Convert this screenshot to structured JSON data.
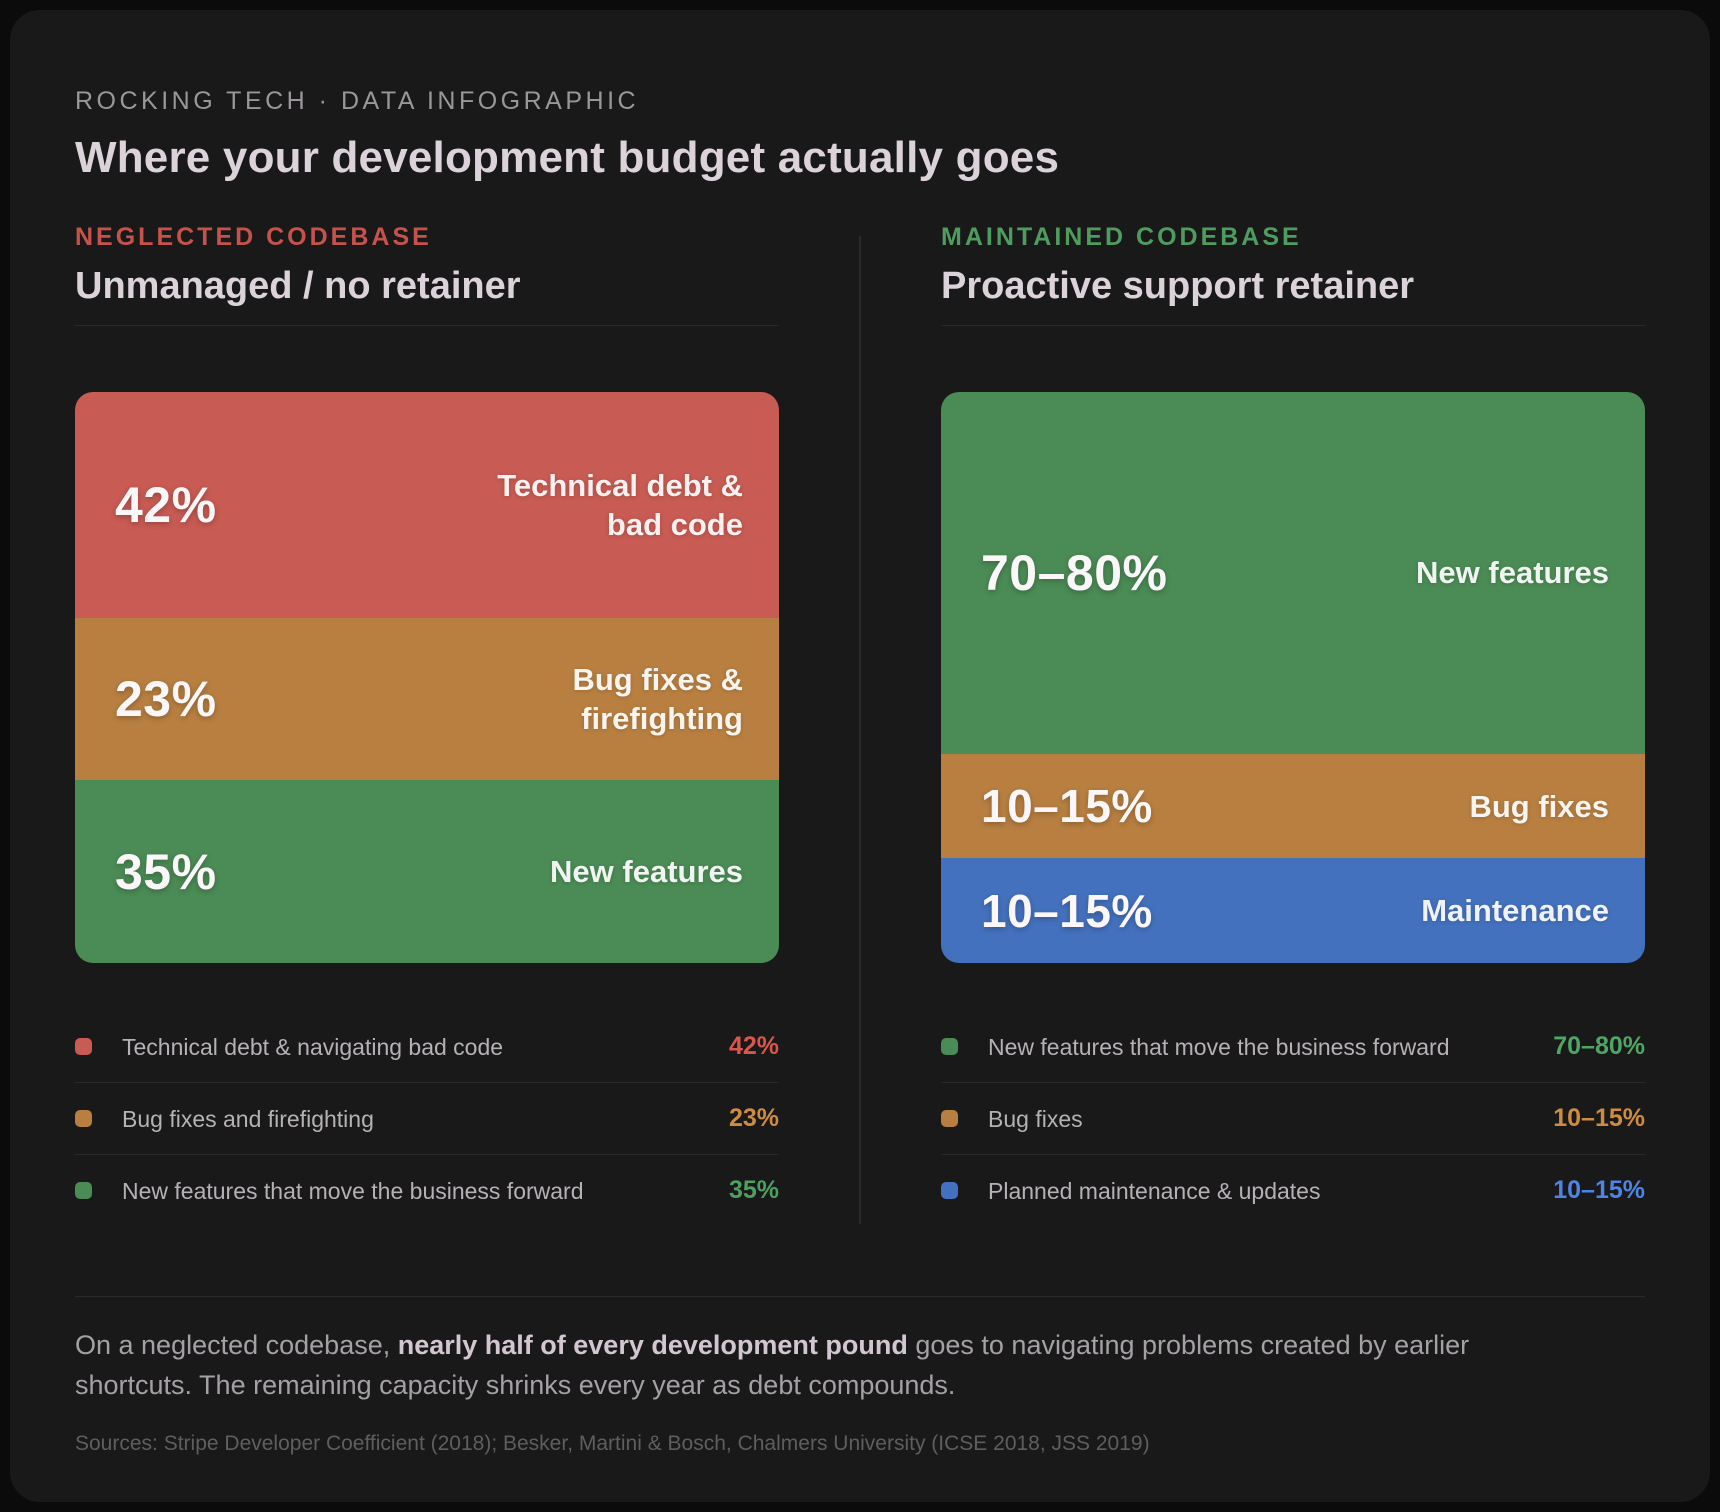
{
  "page": {
    "eyebrow": "ROCKING TECH · DATA INFOGRAPHIC",
    "title": "Where your development budget actually goes"
  },
  "summary": {
    "lead": "On a neglected codebase, ",
    "bold": "nearly half of every development pound",
    "rest": " goes to navigating problems created by earlier shortcuts. The remaining capacity shrinks every year as debt compounds."
  },
  "sources": "Sources: Stripe Developer Coefficient (2018); Besker, Martini & Bosch, Chalmers University (ICSE 2018, JSS 2019)",
  "columns": [
    {
      "kicker": "NEGLECTED CODEBASE",
      "kicker_color": "#c5534b",
      "subtitle": "Unmanaged / no retainer",
      "chart": {
        "segments": [
          {
            "value": "42%",
            "label": "Technical debt &\nbad code",
            "size": 41.5,
            "color": "#c85b53",
            "small": false
          },
          {
            "value": "23%",
            "label": "Bug fixes &\nfirefighting",
            "size": 23.5,
            "color": "#b87f41",
            "small": false
          },
          {
            "value": "35%",
            "label": "New features",
            "size": 35,
            "color": "#4b8b56",
            "small": false
          }
        ]
      },
      "legend": [
        {
          "label": "Technical debt & navigating bad code",
          "value": "42%",
          "color": "#c85b53",
          "value_color": "#d9564d"
        },
        {
          "label": "Bug fixes and firefighting",
          "value": "23%",
          "color": "#b87f41",
          "value_color": "#cd8c3f"
        },
        {
          "label": "New features that move the business forward",
          "value": "35%",
          "color": "#4b8b56",
          "value_color": "#4da05f"
        }
      ]
    },
    {
      "kicker": "MAINTAINED CODEBASE",
      "kicker_color": "#4f9c5f",
      "subtitle": "Proactive support retainer",
      "chart": {
        "segments": [
          {
            "value": "70–80%",
            "label": "New features",
            "size": 75,
            "color": "#4b8b56",
            "small": false
          },
          {
            "value": "10–15%",
            "label": "Bug fixes",
            "size": 12.5,
            "color": "#b87f41",
            "small": true
          },
          {
            "value": "10–15%",
            "label": "Maintenance",
            "size": 12.5,
            "color": "#4471be",
            "small": true
          }
        ]
      },
      "legend": [
        {
          "label": "New features that move the business forward",
          "value": "70–80%",
          "color": "#4b8b56",
          "value_color": "#4da663"
        },
        {
          "label": "Bug fixes",
          "value": "10–15%",
          "color": "#b87f41",
          "value_color": "#cd8c3f"
        },
        {
          "label": "Planned maintenance & updates",
          "value": "10–15%",
          "color": "#4471be",
          "value_color": "#4e84e6"
        }
      ]
    }
  ],
  "chart_data": [
    {
      "type": "bar",
      "title": "Unmanaged / no retainer",
      "subtitle": "NEGLECTED CODEBASE",
      "categories": [
        "Technical debt & navigating bad code",
        "Bug fixes and firefighting",
        "New features that move the business forward"
      ],
      "values": [
        42,
        23,
        35
      ],
      "unit": "%",
      "layout": "100%-stacked-vertical",
      "colors": [
        "#c85b53",
        "#b87f41",
        "#4b8b56"
      ],
      "legend_position": "below"
    },
    {
      "type": "bar",
      "title": "Proactive support retainer",
      "subtitle": "MAINTAINED CODEBASE",
      "categories": [
        "New features that move the business forward",
        "Bug fixes",
        "Planned maintenance & updates"
      ],
      "values": [
        "70–80",
        "10–15",
        "10–15"
      ],
      "values_numeric_mid": [
        75,
        12.5,
        12.5
      ],
      "unit": "%",
      "layout": "100%-stacked-vertical",
      "colors": [
        "#4b8b56",
        "#b87f41",
        "#4471be"
      ],
      "legend_position": "below"
    }
  ]
}
